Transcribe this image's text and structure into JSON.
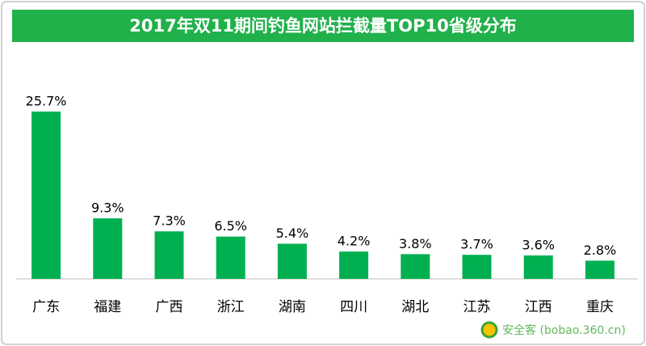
{
  "chart_data": {
    "type": "bar",
    "title": "2017年双11期间钓鱼网站拦截量TOP10省级分布",
    "categories": [
      "广东",
      "福建",
      "广西",
      "浙江",
      "湖南",
      "四川",
      "湖北",
      "江苏",
      "江西",
      "重庆"
    ],
    "values": [
      25.7,
      9.3,
      7.3,
      6.5,
      5.4,
      4.2,
      3.8,
      3.7,
      3.6,
      2.8
    ],
    "value_labels": [
      "25.7%",
      "9.3%",
      "7.3%",
      "6.5%",
      "5.4%",
      "4.2%",
      "3.8%",
      "3.7%",
      "3.6%",
      "2.8%"
    ],
    "color": "#00b050",
    "watermark": "安全客 (bobao.360.cn)"
  }
}
